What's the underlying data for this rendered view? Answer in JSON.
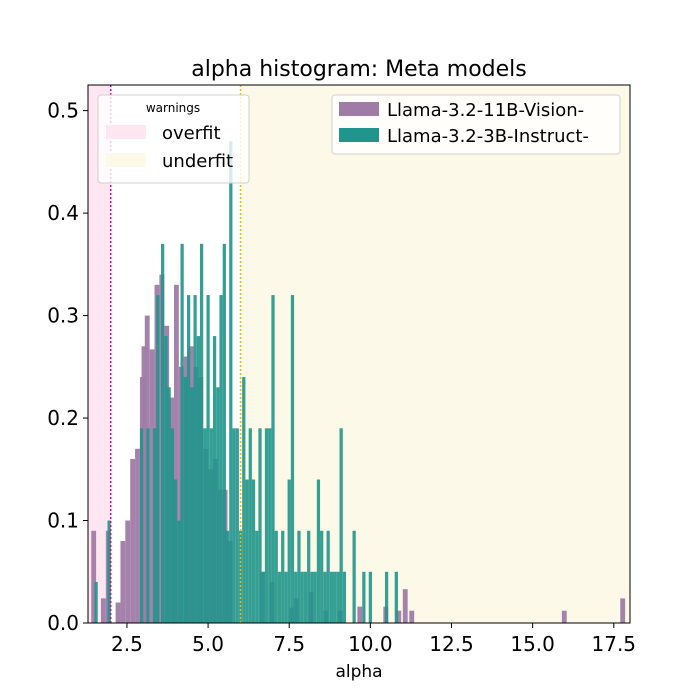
{
  "chart_data": {
    "type": "bar",
    "title": "alpha histogram: Meta models",
    "xlabel": "alpha",
    "ylabel": "",
    "xlim": [
      1.3,
      18.0
    ],
    "ylim": [
      0,
      0.525
    ],
    "xticks": [
      2.5,
      5.0,
      7.5,
      10.0,
      12.5,
      15.0,
      17.5
    ],
    "xtick_labels": [
      "2.5",
      "5.0",
      "7.5",
      "10.0",
      "12.5",
      "15.0",
      "17.5"
    ],
    "yticks": [
      0.0,
      0.1,
      0.2,
      0.3,
      0.4,
      0.5
    ],
    "ytick_labels": [
      "0.0",
      "0.1",
      "0.2",
      "0.3",
      "0.4",
      "0.5"
    ],
    "legend_placement": "top-right",
    "warning_regions": {
      "title": "warnings",
      "items": [
        {
          "label": "overfit",
          "x_range": [
            1.3,
            2.0
          ],
          "line_x": 2.0,
          "color": "#ffe6f0",
          "line_color": "#e8008a"
        },
        {
          "label": "underfit",
          "x_range": [
            6.0,
            18.0
          ],
          "line_x": 6.0,
          "color": "#fcf9e8",
          "line_color": "#f5b400"
        }
      ]
    },
    "series": [
      {
        "name": "Llama-3.2-11B-Vision-",
        "color": "#a07ba6",
        "bins": [
          [
            1.4,
            1.55,
            0.09
          ],
          [
            1.55,
            1.7,
            0.0
          ],
          [
            1.7,
            1.85,
            0.024
          ],
          [
            1.85,
            2.0,
            0.09
          ],
          [
            2.0,
            2.15,
            0.0
          ],
          [
            2.15,
            2.3,
            0.02
          ],
          [
            2.3,
            2.45,
            0.08
          ],
          [
            2.45,
            2.6,
            0.1
          ],
          [
            2.6,
            2.75,
            0.16
          ],
          [
            2.75,
            2.9,
            0.17
          ],
          [
            2.9,
            3.05,
            0.24
          ],
          [
            2.95,
            3.1,
            0.27
          ],
          [
            3.05,
            3.2,
            0.3
          ],
          [
            3.2,
            3.35,
            0.267
          ],
          [
            3.35,
            3.5,
            0.33
          ],
          [
            3.5,
            3.65,
            0.34
          ],
          [
            3.65,
            3.8,
            0.29
          ],
          [
            3.8,
            3.95,
            0.22
          ],
          [
            3.95,
            4.1,
            0.33
          ],
          [
            4.1,
            4.25,
            0.25
          ],
          [
            4.25,
            4.4,
            0.26
          ],
          [
            4.4,
            4.55,
            0.27
          ],
          [
            4.55,
            4.7,
            0.25
          ],
          [
            4.7,
            4.85,
            0.24
          ],
          [
            4.85,
            5.0,
            0.17
          ],
          [
            5.0,
            5.15,
            0.15
          ],
          [
            5.15,
            5.3,
            0.16
          ],
          [
            5.3,
            5.45,
            0.13
          ],
          [
            5.45,
            5.6,
            0.13
          ],
          [
            5.6,
            5.75,
            0.08
          ],
          [
            6.6,
            6.75,
            0.05
          ],
          [
            6.9,
            7.05,
            0.04
          ],
          [
            7.5,
            7.65,
            0.015
          ],
          [
            7.65,
            7.8,
            0.024
          ],
          [
            8.1,
            8.25,
            0.03
          ],
          [
            8.55,
            8.7,
            0.012
          ],
          [
            9.0,
            9.15,
            0.012
          ],
          [
            9.6,
            9.75,
            0.016
          ],
          [
            10.4,
            10.55,
            0.016
          ],
          [
            10.8,
            10.95,
            0.012
          ],
          [
            11.0,
            11.15,
            0.033
          ],
          [
            11.2,
            11.35,
            0.012
          ],
          [
            15.9,
            16.05,
            0.012
          ],
          [
            17.7,
            17.85,
            0.024
          ]
        ]
      },
      {
        "name": "Llama-3.2-3B-Instruct-",
        "color": "#1f958b",
        "bins": [
          [
            1.5,
            1.6,
            0.04
          ],
          [
            1.9,
            2.0,
            0.1
          ],
          [
            2.9,
            3.0,
            0.19
          ],
          [
            3.1,
            3.2,
            0.19
          ],
          [
            3.3,
            3.4,
            0.19
          ],
          [
            3.4,
            3.5,
            0.32
          ],
          [
            3.55,
            3.65,
            0.37
          ],
          [
            3.65,
            3.75,
            0.28
          ],
          [
            3.75,
            3.85,
            0.23
          ],
          [
            3.85,
            3.95,
            0.19
          ],
          [
            3.95,
            4.05,
            0.14
          ],
          [
            4.05,
            4.15,
            0.1
          ],
          [
            4.15,
            4.25,
            0.37
          ],
          [
            4.25,
            4.35,
            0.24
          ],
          [
            4.35,
            4.45,
            0.32
          ],
          [
            4.45,
            4.55,
            0.23
          ],
          [
            4.55,
            4.65,
            0.32
          ],
          [
            4.65,
            4.75,
            0.28
          ],
          [
            4.75,
            4.85,
            0.37
          ],
          [
            4.85,
            4.95,
            0.19
          ],
          [
            4.95,
            5.05,
            0.32
          ],
          [
            5.05,
            5.15,
            0.19
          ],
          [
            5.15,
            5.25,
            0.28
          ],
          [
            5.25,
            5.35,
            0.23
          ],
          [
            5.35,
            5.45,
            0.32
          ],
          [
            5.45,
            5.55,
            0.37
          ],
          [
            5.55,
            5.65,
            0.09
          ],
          [
            5.65,
            5.75,
            0.47
          ],
          [
            5.75,
            5.85,
            0.19
          ],
          [
            5.85,
            5.95,
            0.19
          ],
          [
            5.95,
            6.05,
            0.09
          ],
          [
            6.05,
            6.15,
            0.24
          ],
          [
            6.15,
            6.25,
            0.14
          ],
          [
            6.25,
            6.35,
            0.19
          ],
          [
            6.35,
            6.45,
            0.14
          ],
          [
            6.45,
            6.55,
            0.09
          ],
          [
            6.55,
            6.65,
            0.19
          ],
          [
            6.65,
            6.75,
            0.05
          ],
          [
            6.75,
            6.85,
            0.19
          ],
          [
            6.85,
            6.95,
            0.19
          ],
          [
            6.95,
            7.05,
            0.32
          ],
          [
            7.05,
            7.15,
            0.09
          ],
          [
            7.15,
            7.25,
            0.05
          ],
          [
            7.25,
            7.35,
            0.09
          ],
          [
            7.35,
            7.45,
            0.05
          ],
          [
            7.45,
            7.55,
            0.14
          ],
          [
            7.55,
            7.65,
            0.32
          ],
          [
            7.65,
            7.75,
            0.05
          ],
          [
            7.75,
            7.85,
            0.09
          ],
          [
            7.85,
            7.95,
            0.05
          ],
          [
            7.95,
            8.05,
            0.05
          ],
          [
            8.05,
            8.15,
            0.09
          ],
          [
            8.15,
            8.25,
            0.05
          ],
          [
            8.25,
            8.35,
            0.05
          ],
          [
            8.35,
            8.45,
            0.14
          ],
          [
            8.45,
            8.55,
            0.09
          ],
          [
            8.55,
            8.65,
            0.05
          ],
          [
            8.65,
            8.75,
            0.09
          ],
          [
            8.75,
            8.85,
            0.05
          ],
          [
            8.85,
            8.95,
            0.05
          ],
          [
            8.95,
            9.05,
            0.05
          ],
          [
            9.05,
            9.15,
            0.19
          ],
          [
            9.15,
            9.25,
            0.05
          ],
          [
            9.45,
            9.55,
            0.09
          ],
          [
            9.75,
            9.85,
            0.05
          ],
          [
            9.95,
            10.05,
            0.05
          ],
          [
            10.45,
            10.55,
            0.05
          ],
          [
            10.75,
            10.85,
            0.05
          ]
        ]
      }
    ]
  }
}
